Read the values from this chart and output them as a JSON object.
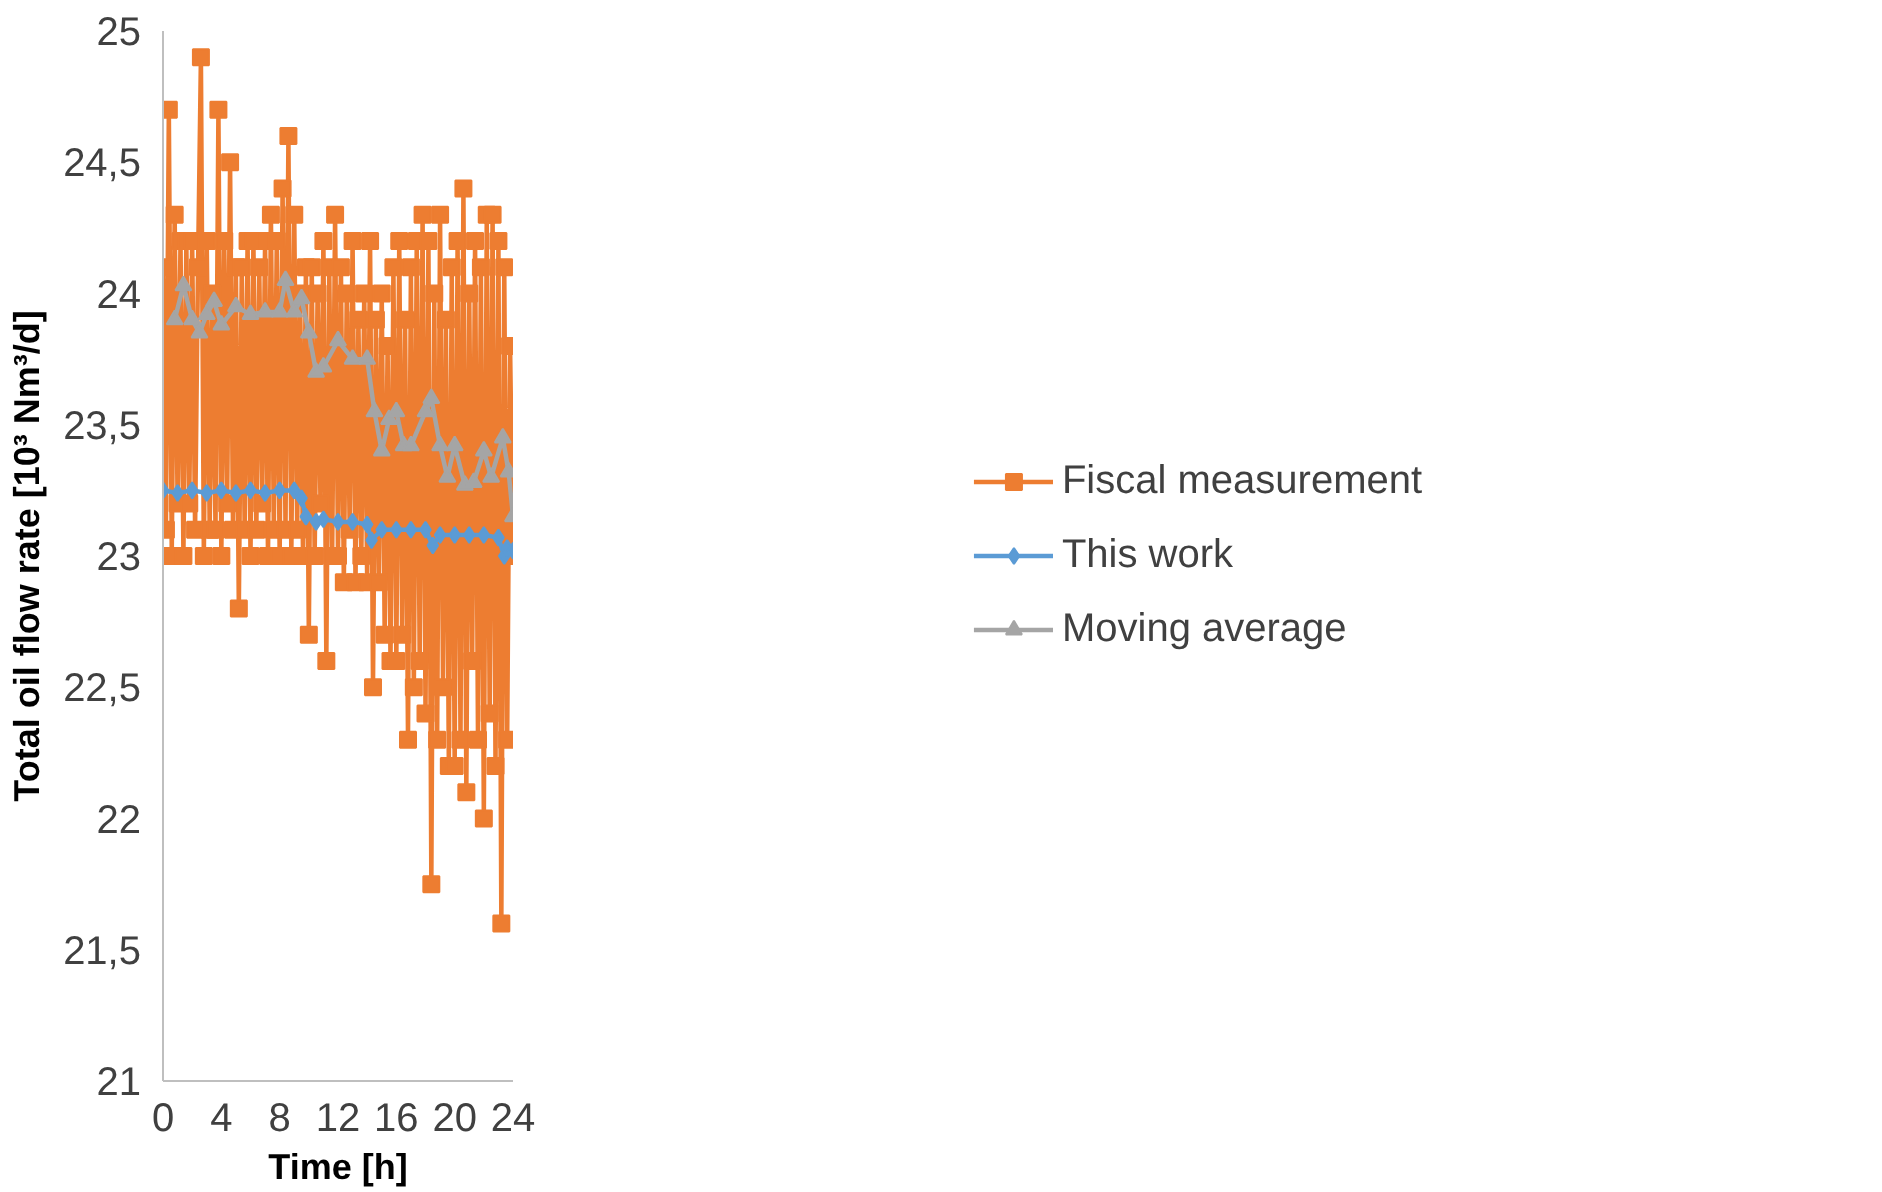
{
  "chart_data": {
    "type": "line",
    "xlabel": "Time [h]",
    "ylabel": "Total oil flow rate [10³ Nm³/d]",
    "xlim": [
      0,
      24
    ],
    "xticks": [
      0,
      4,
      8,
      12,
      16,
      20,
      24
    ],
    "ylim": [
      21,
      25
    ],
    "yticks": [
      21,
      {
        "value": 21.5,
        "label": "21,5"
      },
      22,
      {
        "value": 22.5,
        "label": "22,5"
      },
      23,
      {
        "value": 23.5,
        "label": "23,5"
      },
      24,
      {
        "value": 24.5,
        "label": "24,5"
      },
      25
    ],
    "grid": false,
    "legend": "right",
    "series": [
      {
        "name": "Fiscal measurement",
        "color": "#ed7d31",
        "marker": "square",
        "x": [
          0,
          0.2,
          0.4,
          0.6,
          0.8,
          1,
          1.2,
          1.4,
          1.6,
          1.8,
          2,
          2.2,
          2.4,
          2.6,
          2.8,
          3,
          3.2,
          3.4,
          3.6,
          3.8,
          4,
          4.2,
          4.4,
          4.6,
          4.8,
          5,
          5.2,
          5.4,
          5.6,
          5.8,
          6,
          6.2,
          6.4,
          6.6,
          6.8,
          7,
          7.2,
          7.4,
          7.6,
          7.8,
          8,
          8.2,
          8.4,
          8.6,
          8.8,
          9,
          9.2,
          9.4,
          9.6,
          9.8,
          10,
          10.2,
          10.4,
          10.6,
          10.8,
          11,
          11.2,
          11.4,
          11.6,
          11.8,
          12,
          12.2,
          12.4,
          12.6,
          12.8,
          13,
          13.2,
          13.4,
          13.6,
          13.8,
          14,
          14.2,
          14.4,
          14.6,
          14.8,
          15,
          15.2,
          15.4,
          15.6,
          15.8,
          16,
          16.2,
          16.4,
          16.6,
          16.8,
          17,
          17.2,
          17.4,
          17.6,
          17.8,
          18,
          18.2,
          18.4,
          18.6,
          18.8,
          19,
          19.2,
          19.4,
          19.6,
          19.8,
          20,
          20.2,
          20.4,
          20.6,
          20.8,
          21,
          21.2,
          21.4,
          21.6,
          21.8,
          22,
          22.2,
          22.4,
          22.6,
          22.8,
          23,
          23.2,
          23.4,
          23.6,
          23.8,
          24
        ],
        "values": [
          24.1,
          23.1,
          24.7,
          23.0,
          24.3,
          23.2,
          24.2,
          23.0,
          24.2,
          23.2,
          24.2,
          23.1,
          24.1,
          24.9,
          23.0,
          24.2,
          23.1,
          24.0,
          23.1,
          24.7,
          23.0,
          24.2,
          23.2,
          24.5,
          23.1,
          24.1,
          22.8,
          24.1,
          23.1,
          24.2,
          23.0,
          24.2,
          23.1,
          24.1,
          23.2,
          24.2,
          23.0,
          24.3,
          23.1,
          24.2,
          23.0,
          24.4,
          23.1,
          24.6,
          23.0,
          24.3,
          23.1,
          24.0,
          23.0,
          24.1,
          22.7,
          24.1,
          23.0,
          24.0,
          23.2,
          24.2,
          22.6,
          24.1,
          23.0,
          24.3,
          23.0,
          24.1,
          22.9,
          24.0,
          23.1,
          24.2,
          22.9,
          23.9,
          23.0,
          24.0,
          22.9,
          24.2,
          22.5,
          23.9,
          22.9,
          24.0,
          22.7,
          23.8,
          22.6,
          24.1,
          22.6,
          24.2,
          22.7,
          23.9,
          22.3,
          24.1,
          22.5,
          24.2,
          22.6,
          24.3,
          22.4,
          24.2,
          21.75,
          24.0,
          22.3,
          24.3,
          22.5,
          23.9,
          22.2,
          24.1,
          22.2,
          24.2,
          22.3,
          24.4,
          22.1,
          24.0,
          22.6,
          24.2,
          22.3,
          24.1,
          22.0,
          24.3,
          22.4,
          24.3,
          22.2,
          24.2,
          21.6,
          24.1,
          22.3,
          23.8,
          23.0
        ]
      },
      {
        "name": "This work",
        "color": "#5b9bd5",
        "marker": "diamond",
        "x": [
          0,
          1,
          2,
          3,
          4,
          5,
          6,
          7,
          8,
          9,
          9.5,
          9.8,
          10.5,
          11,
          12,
          13,
          14,
          14.3,
          15,
          16,
          17,
          18,
          18.5,
          19,
          20,
          21,
          22,
          23,
          23.4,
          23.6,
          24
        ],
        "values": [
          23.25,
          23.24,
          23.25,
          23.24,
          23.25,
          23.24,
          23.25,
          23.24,
          23.25,
          23.25,
          23.22,
          23.15,
          23.13,
          23.14,
          23.13,
          23.13,
          23.12,
          23.06,
          23.1,
          23.1,
          23.1,
          23.1,
          23.04,
          23.08,
          23.08,
          23.08,
          23.08,
          23.07,
          23.0,
          23.03,
          23.02
        ]
      },
      {
        "name": "Moving average",
        "color": "#a5a5a5",
        "marker": "triangle",
        "x": [
          0.8,
          1.4,
          2,
          2.5,
          3,
          3.5,
          4,
          5,
          6,
          7,
          8,
          8.4,
          9,
          9.5,
          10,
          10.5,
          11,
          12,
          13,
          14,
          14.5,
          15,
          15.5,
          16,
          16.5,
          17,
          18,
          18.4,
          19,
          19.5,
          20,
          20.7,
          21.3,
          22,
          22.5,
          23.3,
          23.7,
          24
        ],
        "values": [
          23.9,
          24.03,
          23.9,
          23.85,
          23.92,
          23.97,
          23.88,
          23.95,
          23.92,
          23.93,
          23.93,
          24.05,
          23.93,
          23.98,
          23.85,
          23.7,
          23.72,
          23.82,
          23.75,
          23.75,
          23.55,
          23.4,
          23.52,
          23.55,
          23.42,
          23.42,
          23.55,
          23.6,
          23.42,
          23.3,
          23.42,
          23.27,
          23.28,
          23.4,
          23.3,
          23.45,
          23.32,
          23.15
        ]
      }
    ]
  }
}
